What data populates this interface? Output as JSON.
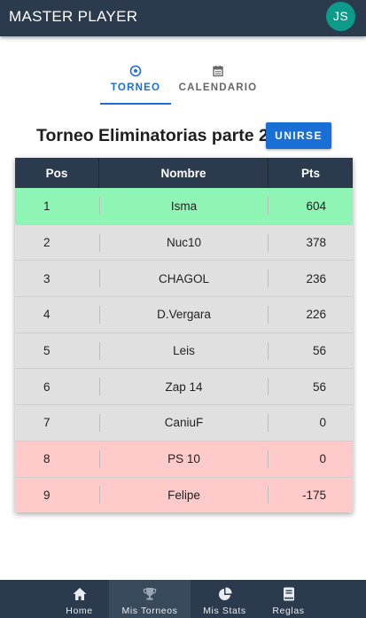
{
  "app": {
    "title": "MASTER PLAYER",
    "user_initials": "JS"
  },
  "tabs": [
    {
      "label": "TORNEO",
      "icon": "soccer-ball-icon",
      "active": true
    },
    {
      "label": "CALENDARIO",
      "icon": "calendar-icon",
      "active": false
    }
  ],
  "tournament": {
    "title": "Torneo Eliminatorias parte 2",
    "join_label": "UNIRSE"
  },
  "table": {
    "columns": [
      "Pos",
      "Nombre",
      "Pts"
    ],
    "rows": [
      {
        "pos": "1",
        "name": "Isma",
        "pts": "604",
        "status": "leader"
      },
      {
        "pos": "2",
        "name": "Nuc10",
        "pts": "378",
        "status": "normal"
      },
      {
        "pos": "3",
        "name": "CHAGOL",
        "pts": "236",
        "status": "normal"
      },
      {
        "pos": "4",
        "name": "D.Vergara",
        "pts": "226",
        "status": "normal"
      },
      {
        "pos": "5",
        "name": "Leis",
        "pts": "56",
        "status": "normal"
      },
      {
        "pos": "6",
        "name": "Zap 14",
        "pts": "56",
        "status": "normal"
      },
      {
        "pos": "7",
        "name": "CaniuF",
        "pts": "0",
        "status": "normal"
      },
      {
        "pos": "8",
        "name": "PS 10",
        "pts": "0",
        "status": "relegated"
      },
      {
        "pos": "9",
        "name": "Felipe",
        "pts": "-175",
        "status": "relegated"
      }
    ]
  },
  "bottom_nav": [
    {
      "label": "Home",
      "icon": "home-icon",
      "active": false
    },
    {
      "label": "Mis Torneos",
      "icon": "trophy-icon",
      "active": true
    },
    {
      "label": "Mis Stats",
      "icon": "pie-chart-icon",
      "active": false
    },
    {
      "label": "Reglas",
      "icon": "book-icon",
      "active": false
    }
  ],
  "colors": {
    "header": "#2b3a4d",
    "accent": "#1a6fd6",
    "avatar": "#0d9a8a",
    "leader_row": "#8ff5b5",
    "relegated_row": "#ffcaca",
    "normal_row": "#e0e0e0"
  }
}
